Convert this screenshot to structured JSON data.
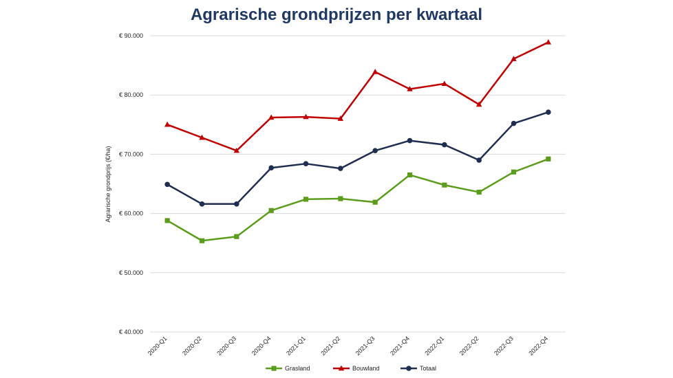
{
  "chart_data": {
    "type": "line",
    "title": "Agrarische grondprijzen per kwartaal",
    "xlabel": "",
    "ylabel": "Agrarische grondprijs (€/ha)",
    "ylim": [
      40000,
      90000
    ],
    "y_ticks": [
      40000,
      50000,
      60000,
      70000,
      80000,
      90000
    ],
    "y_tick_labels": [
      "€ 40.000",
      "€ 50.000",
      "€ 60.000",
      "€ 70.000",
      "€ 80.000",
      "€ 90.000"
    ],
    "grid": true,
    "legend_position": "bottom",
    "categories": [
      "2020-Q1",
      "2020-Q2",
      "2020-Q3",
      "2020-Q4",
      "2021-Q1",
      "2021-Q2",
      "2021-Q3",
      "2021-Q4",
      "2022-Q1",
      "2022-Q2",
      "2022-Q3",
      "2022-Q4"
    ],
    "series": [
      {
        "name": "Grasland",
        "color": "#5b9c1a",
        "marker": "square",
        "values": [
          58800,
          55400,
          56100,
          60500,
          62400,
          62500,
          61900,
          66500,
          64800,
          63600,
          67000,
          69200
        ]
      },
      {
        "name": "Bouwland",
        "color": "#c00000",
        "marker": "triangle",
        "values": [
          75000,
          72800,
          70600,
          76200,
          76300,
          76000,
          83900,
          81000,
          81900,
          78400,
          86100,
          88900
        ]
      },
      {
        "name": "Totaal",
        "color": "#1f2d50",
        "marker": "circle",
        "values": [
          64900,
          61600,
          61600,
          67700,
          68400,
          67600,
          70600,
          72300,
          71600,
          69000,
          75200,
          77100
        ]
      }
    ]
  }
}
